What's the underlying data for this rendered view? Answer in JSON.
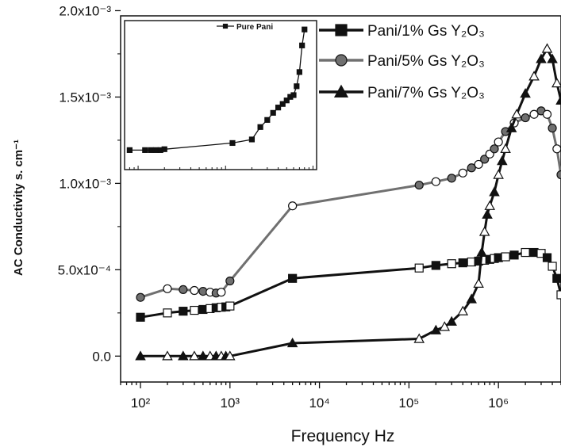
{
  "chart_data": {
    "type": "line",
    "xlabel": "Frequency Hz",
    "ylabel": "AC Conductivity s. cm⁻¹",
    "x_scale": "log",
    "xlim": [
      60,
      5000000
    ],
    "ylim": [
      -0.00015,
      0.00197
    ],
    "x_ticks": [
      {
        "value": 100,
        "label": "10²"
      },
      {
        "value": 1000,
        "label": "10³"
      },
      {
        "value": 10000,
        "label": "10⁴"
      },
      {
        "value": 100000,
        "label": "10⁵"
      },
      {
        "value": 1000000,
        "label": "10⁶"
      }
    ],
    "y_ticks": [
      {
        "value": 0,
        "label": "0.0"
      },
      {
        "value": 0.0005,
        "label": "5.0x10⁻⁴"
      },
      {
        "value": 0.001,
        "label": "1.0x10⁻³"
      },
      {
        "value": 0.0015,
        "label": "1.5x10⁻³"
      },
      {
        "value": 0.002,
        "label": "2.0x10⁻³"
      }
    ],
    "legend_position": "top-right",
    "series": [
      {
        "name": "Pani/1% Gs Y₂O₃",
        "color": "#111111",
        "marker": "square",
        "x": [
          100,
          200,
          300,
          400,
          500,
          600,
          700,
          800,
          900,
          1000,
          5000,
          130000,
          200000,
          300000,
          400000,
          500000,
          600000,
          700000,
          800000,
          900000,
          1000000,
          1200000,
          1500000,
          2000000,
          2500000,
          3000000,
          3500000,
          4000000,
          4500000,
          5000000
        ],
        "y": [
          0.000225,
          0.00025,
          0.00026,
          0.000265,
          0.00027,
          0.000275,
          0.00028,
          0.000283,
          0.000285,
          0.00029,
          0.00045,
          0.00051,
          0.000525,
          0.000535,
          0.00054,
          0.000545,
          0.00055,
          0.000555,
          0.00056,
          0.000565,
          0.00057,
          0.000575,
          0.000585,
          0.0006,
          0.0006,
          0.000595,
          0.00057,
          0.00052,
          0.00045,
          0.000355
        ]
      },
      {
        "name": "Pani/5% Gs Y₂O₃",
        "color": "#707070",
        "marker": "circle",
        "x": [
          100,
          200,
          300,
          400,
          500,
          600,
          700,
          800,
          1000,
          5000,
          130000,
          200000,
          300000,
          400000,
          500000,
          600000,
          700000,
          800000,
          900000,
          1000000,
          1200000,
          1500000,
          2000000,
          2500000,
          3000000,
          3500000,
          4000000,
          4500000,
          5000000
        ],
        "y": [
          0.00034,
          0.00039,
          0.000385,
          0.00038,
          0.000375,
          0.00037,
          0.000365,
          0.00037,
          0.000435,
          0.00087,
          0.00099,
          0.00101,
          0.00103,
          0.00106,
          0.00109,
          0.00111,
          0.00114,
          0.00117,
          0.0012,
          0.00124,
          0.0013,
          0.00135,
          0.00138,
          0.0014,
          0.00142,
          0.0014,
          0.00132,
          0.0012,
          0.00105
        ]
      },
      {
        "name": "Pani/7% Gs Y₂O₃",
        "color": "#111111",
        "marker": "triangle",
        "x": [
          100,
          200,
          300,
          400,
          500,
          600,
          700,
          800,
          900,
          1000,
          5000,
          130000,
          200000,
          250000,
          300000,
          400000,
          500000,
          600000,
          650000,
          700000,
          750000,
          800000,
          900000,
          1000000,
          1100000,
          1200000,
          1400000,
          1600000,
          2000000,
          2500000,
          3000000,
          3500000,
          4000000,
          4500000,
          5000000
        ],
        "y": [
          0.0,
          0.0,
          0.0,
          0.0,
          0.0,
          0.0,
          0.0,
          0.0,
          0.0,
          0.0,
          7.5e-05,
          0.0001,
          0.00015,
          0.00017,
          0.0002,
          0.00026,
          0.00033,
          0.00042,
          0.0006,
          0.00072,
          0.00082,
          0.00087,
          0.00095,
          0.00105,
          0.00113,
          0.0012,
          0.00132,
          0.0014,
          0.00152,
          0.00162,
          0.00172,
          0.00178,
          0.00172,
          0.00158,
          0.00148
        ]
      }
    ],
    "inset": {
      "legend": "Pure Pani",
      "x_scale": "log",
      "xlim": [
        70,
        11000
      ],
      "ylim": [
        0.00108,
        0.00192
      ],
      "series": [
        {
          "name": "Pure Pani",
          "color": "#111111",
          "marker": "square",
          "x": [
            80,
            120,
            140,
            160,
            180,
            200,
            1200,
            2000,
            2500,
            3000,
            3500,
            4000,
            4500,
            5000,
            5500,
            6000,
            6500,
            7000,
            7500,
            8000
          ],
          "y": [
            0.00119,
            0.00119,
            0.00119,
            0.00119,
            0.00119,
            0.001195,
            0.00123,
            0.00125,
            0.00132,
            0.00136,
            0.0014,
            0.00143,
            0.00145,
            0.00147,
            0.00149,
            0.0015,
            0.00155,
            0.00163,
            0.00178,
            0.00187
          ]
        }
      ]
    }
  }
}
